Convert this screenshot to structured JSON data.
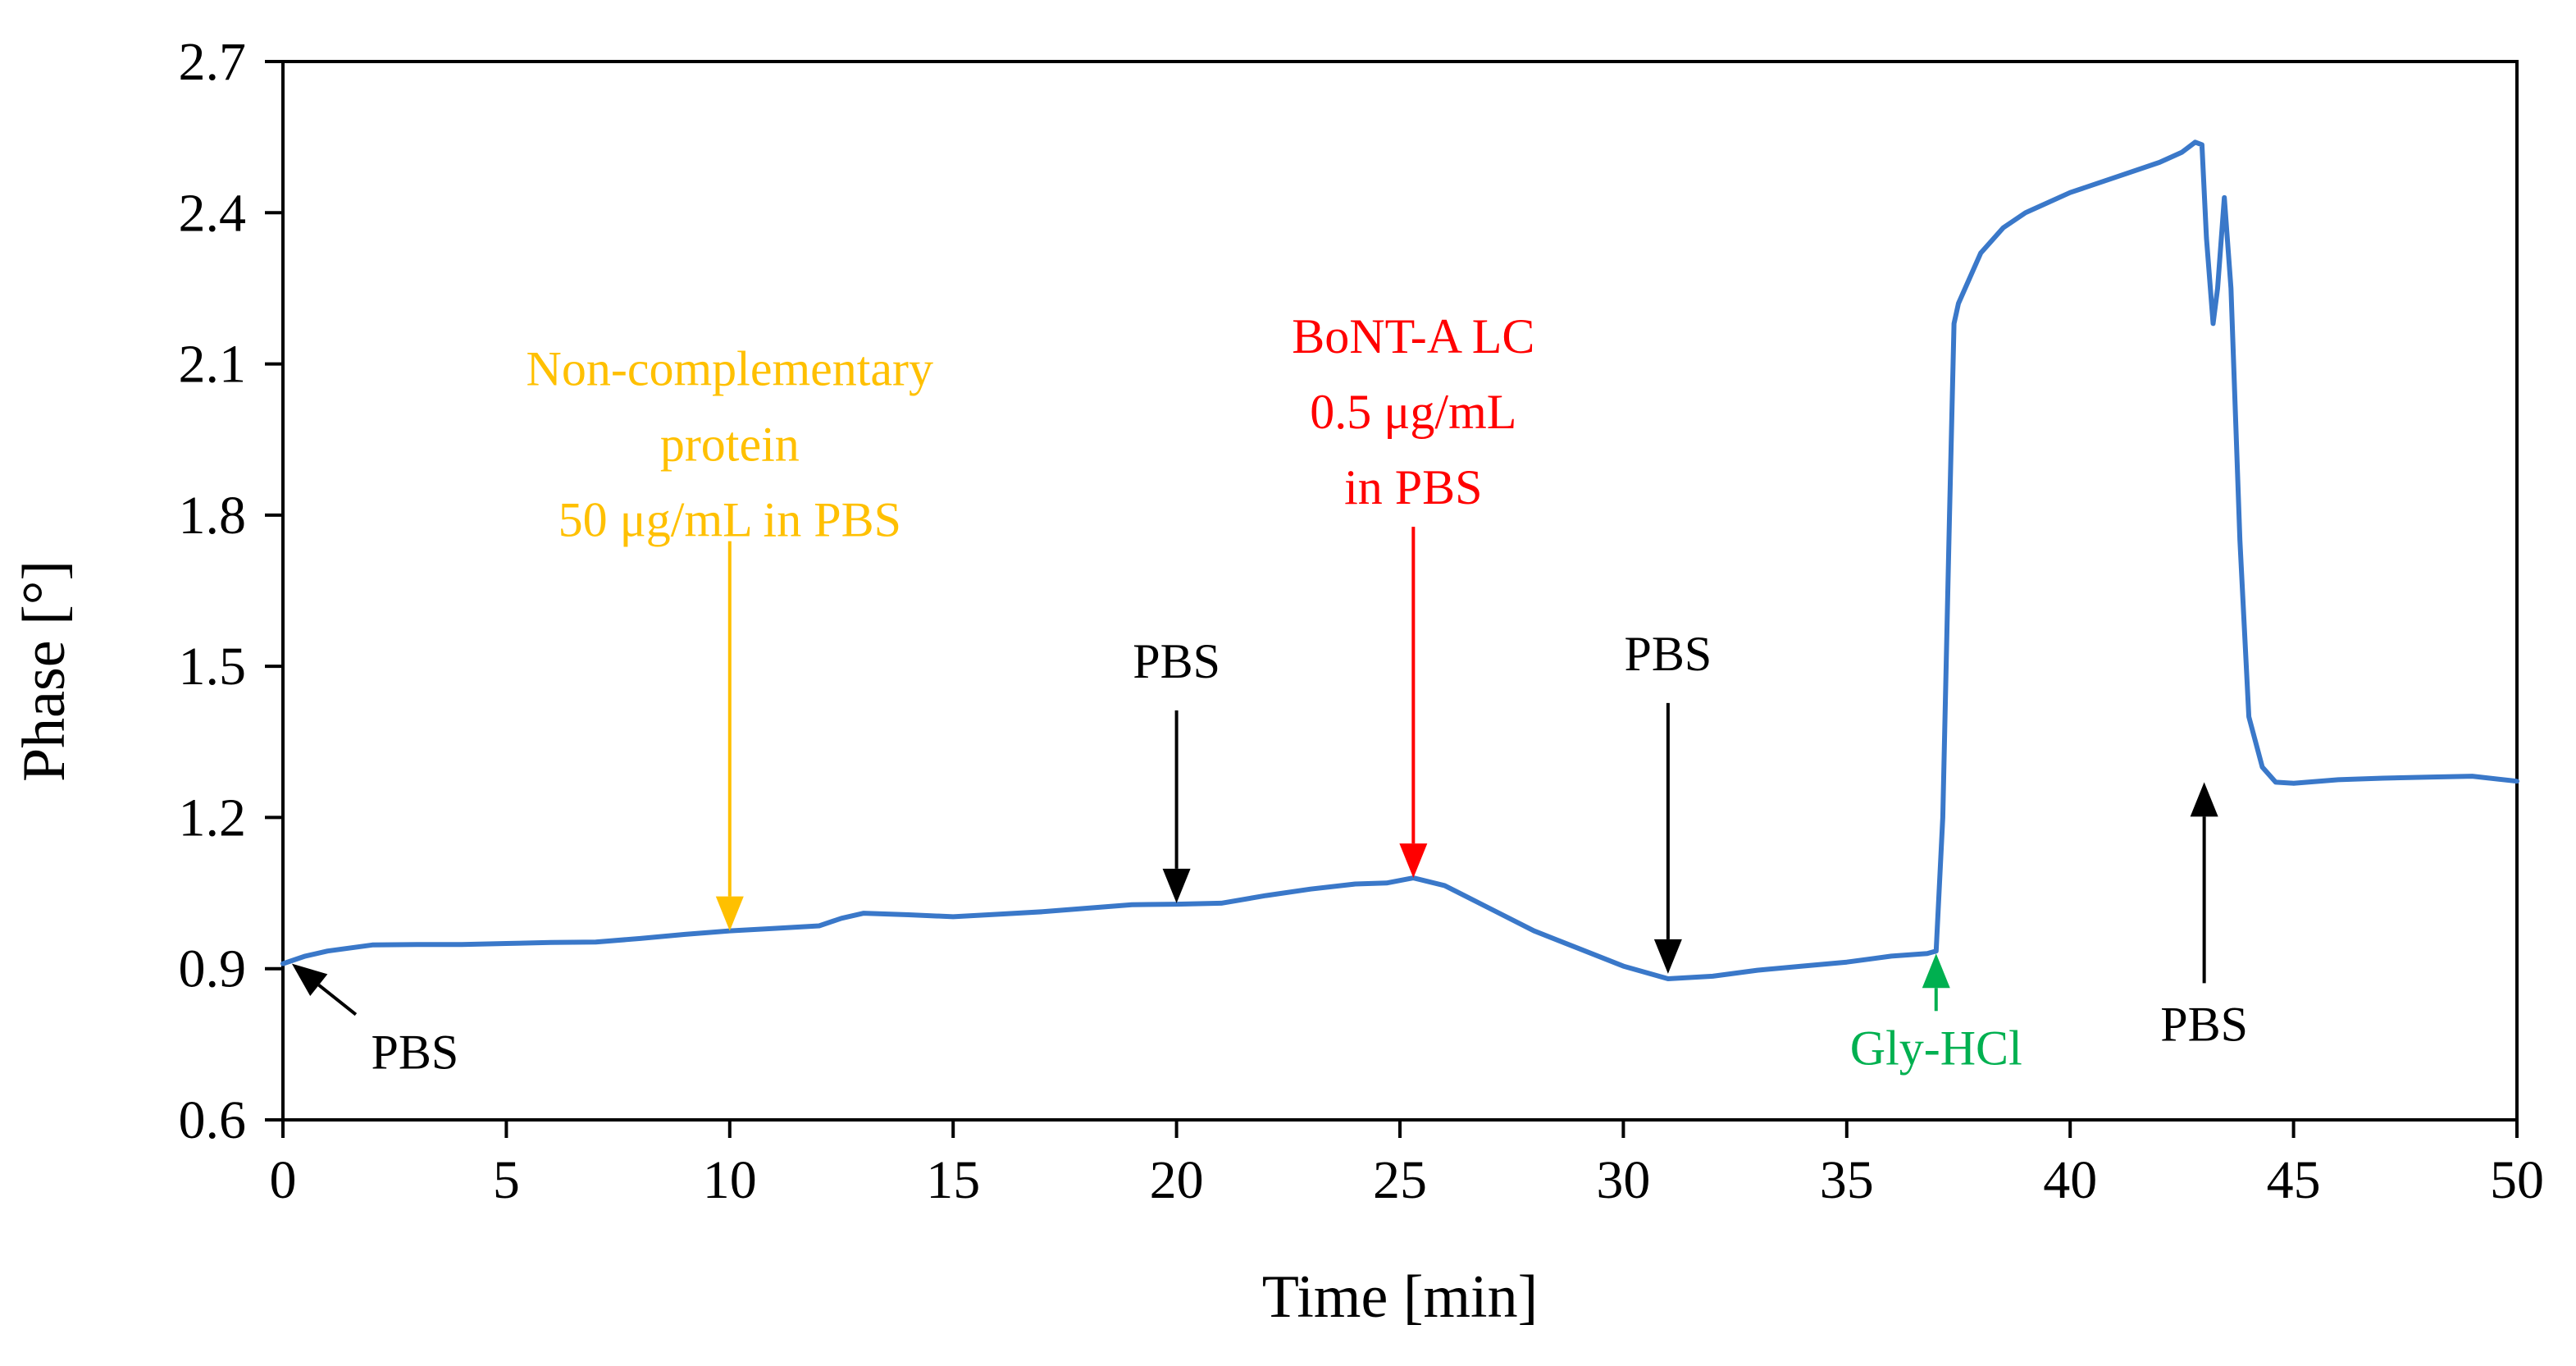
{
  "chart_data": {
    "type": "line",
    "title": "",
    "xlabel": "Time [min]",
    "ylabel": "Phase [°]",
    "xlim": [
      0,
      50
    ],
    "ylim": [
      0.6,
      2.7
    ],
    "xticks": [
      0,
      5,
      10,
      15,
      20,
      25,
      30,
      35,
      40,
      45,
      50
    ],
    "yticks": [
      0.6,
      0.9,
      1.2,
      1.5,
      1.8,
      2.1,
      2.4,
      2.7
    ],
    "xtick_labels": [
      "0",
      "5",
      "10",
      "15",
      "20",
      "25",
      "30",
      "35",
      "40",
      "45",
      "50"
    ],
    "ytick_labels": [
      "0.6",
      "0.9",
      "1.2",
      "1.5",
      "1.8",
      "2.1",
      "2.4",
      "2.7"
    ],
    "grid": false,
    "series": [
      {
        "name": "Phase",
        "color": "#3A78C9",
        "points": [
          [
            0,
            0.91
          ],
          [
            0.5,
            0.925
          ],
          [
            1,
            0.935
          ],
          [
            2,
            0.947
          ],
          [
            3,
            0.948
          ],
          [
            4,
            0.948
          ],
          [
            5,
            0.95
          ],
          [
            6,
            0.952
          ],
          [
            7,
            0.953
          ],
          [
            8,
            0.96
          ],
          [
            9,
            0.968
          ],
          [
            10,
            0.975
          ],
          [
            11,
            0.98
          ],
          [
            12,
            0.985
          ],
          [
            12.5,
            1.0
          ],
          [
            13,
            1.01
          ],
          [
            14,
            1.007
          ],
          [
            15,
            1.003
          ],
          [
            16,
            1.008
          ],
          [
            17,
            1.013
          ],
          [
            18,
            1.02
          ],
          [
            19,
            1.027
          ],
          [
            20,
            1.028
          ],
          [
            21,
            1.03
          ],
          [
            22,
            1.045
          ],
          [
            23,
            1.058
          ],
          [
            24,
            1.068
          ],
          [
            24.7,
            1.07
          ],
          [
            25.3,
            1.08
          ],
          [
            26,
            1.065
          ],
          [
            27,
            1.02
          ],
          [
            28,
            0.975
          ],
          [
            29,
            0.94
          ],
          [
            30,
            0.905
          ],
          [
            31,
            0.88
          ],
          [
            32,
            0.885
          ],
          [
            33,
            0.897
          ],
          [
            34,
            0.905
          ],
          [
            35,
            0.913
          ],
          [
            36,
            0.925
          ],
          [
            36.8,
            0.93
          ],
          [
            37.0,
            0.935
          ],
          [
            37.15,
            1.2
          ],
          [
            37.3,
            1.8
          ],
          [
            37.4,
            2.18
          ],
          [
            37.5,
            2.22
          ],
          [
            38,
            2.32
          ],
          [
            38.5,
            2.37
          ],
          [
            39,
            2.4
          ],
          [
            40,
            2.44
          ],
          [
            41,
            2.47
          ],
          [
            42,
            2.5
          ],
          [
            42.5,
            2.52
          ],
          [
            42.8,
            2.54
          ],
          [
            42.95,
            2.535
          ],
          [
            43.05,
            2.35
          ],
          [
            43.2,
            2.18
          ],
          [
            43.3,
            2.25
          ],
          [
            43.45,
            2.43
          ],
          [
            43.6,
            2.25
          ],
          [
            43.8,
            1.75
          ],
          [
            44.0,
            1.4
          ],
          [
            44.3,
            1.3
          ],
          [
            44.6,
            1.27
          ],
          [
            45,
            1.268
          ],
          [
            46,
            1.275
          ],
          [
            47,
            1.278
          ],
          [
            48,
            1.28
          ],
          [
            49,
            1.282
          ],
          [
            50,
            1.272
          ]
        ]
      }
    ],
    "annotations": [
      {
        "lines": [
          "PBS"
        ],
        "color": "#000000",
        "arrow_direction": "up-left",
        "x": 0.2,
        "y": 0.91
      },
      {
        "lines": [
          "Non-complementary",
          "protein",
          "50 μg/mL  in PBS"
        ],
        "color": "#FFC000",
        "arrow_direction": "down",
        "x": 10,
        "y": 0.975
      },
      {
        "lines": [
          "PBS"
        ],
        "color": "#000000",
        "arrow_direction": "down",
        "x": 20,
        "y": 1.03
      },
      {
        "lines": [
          "BoNT-A LC",
          "0.5 μg/mL",
          "in PBS"
        ],
        "color": "#FF0000",
        "arrow_direction": "down",
        "x": 25.3,
        "y": 1.08
      },
      {
        "lines": [
          "PBS"
        ],
        "color": "#000000",
        "arrow_direction": "down",
        "x": 31,
        "y": 0.89
      },
      {
        "lines": [
          "Gly-HCl"
        ],
        "color": "#00B050",
        "arrow_direction": "up",
        "x": 37,
        "y": 0.93
      },
      {
        "lines": [
          "PBS"
        ],
        "color": "#000000",
        "arrow_direction": "up",
        "x": 43,
        "y": 1.27
      }
    ]
  }
}
